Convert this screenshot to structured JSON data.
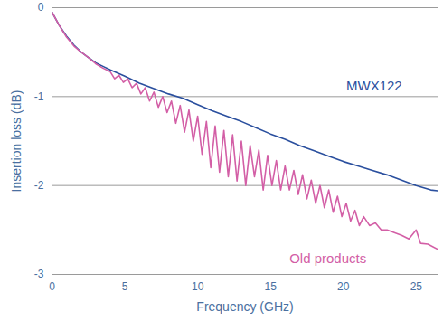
{
  "chart_data": {
    "type": "line",
    "x_label": "Frequency (GHz)",
    "y_label": "Insertion loss (dB)",
    "xlim": [
      0,
      26.5
    ],
    "ylim": [
      -3,
      0
    ],
    "xticks": [
      0,
      5,
      10,
      15,
      20,
      25
    ],
    "yticks": [
      0,
      -1,
      -2,
      -3
    ],
    "grid": true,
    "series": [
      {
        "name": "MWX122",
        "color": "#2a4f9e",
        "x": [
          0,
          0.5,
          1,
          1.5,
          2,
          2.5,
          3,
          3.5,
          4,
          5,
          6,
          7,
          8,
          9,
          10,
          11,
          12,
          13,
          14,
          15,
          16,
          17,
          18,
          19,
          20,
          21,
          22,
          23,
          24,
          25,
          26,
          26.5
        ],
        "values": [
          -0.05,
          -0.2,
          -0.32,
          -0.42,
          -0.5,
          -0.56,
          -0.62,
          -0.66,
          -0.7,
          -0.77,
          -0.85,
          -0.91,
          -0.97,
          -1.02,
          -1.09,
          -1.16,
          -1.22,
          -1.28,
          -1.35,
          -1.42,
          -1.48,
          -1.55,
          -1.61,
          -1.67,
          -1.73,
          -1.78,
          -1.83,
          -1.88,
          -1.94,
          -2.0,
          -2.05,
          -2.06
        ]
      },
      {
        "name": "Old products",
        "color": "#d35fa6",
        "x": [
          0,
          0.5,
          1,
          1.5,
          2,
          2.5,
          3,
          3.5,
          4,
          4.3,
          4.6,
          4.9,
          5.2,
          5.5,
          5.8,
          6.1,
          6.4,
          6.7,
          7,
          7.3,
          7.6,
          7.9,
          8.2,
          8.5,
          8.8,
          9.1,
          9.4,
          9.7,
          10,
          10.3,
          10.6,
          10.9,
          11.2,
          11.5,
          11.8,
          12.1,
          12.4,
          12.7,
          13,
          13.3,
          13.6,
          13.9,
          14.2,
          14.5,
          14.8,
          15.1,
          15.4,
          15.7,
          16,
          16.3,
          16.6,
          16.9,
          17.2,
          17.5,
          17.8,
          18.1,
          18.4,
          18.7,
          19,
          19.3,
          19.6,
          19.9,
          20.2,
          20.5,
          20.8,
          21.1,
          21.4,
          21.8,
          22.2,
          22.6,
          23,
          23.5,
          24,
          24.5,
          25,
          25.3,
          25.8,
          26.5
        ],
        "values": [
          -0.05,
          -0.2,
          -0.33,
          -0.43,
          -0.5,
          -0.56,
          -0.63,
          -0.68,
          -0.72,
          -0.8,
          -0.76,
          -0.84,
          -0.8,
          -0.9,
          -0.85,
          -0.97,
          -0.9,
          -1.05,
          -0.95,
          -1.12,
          -1.0,
          -1.18,
          -1.05,
          -1.3,
          -1.1,
          -1.4,
          -1.15,
          -1.5,
          -1.22,
          -1.65,
          -1.28,
          -1.8,
          -1.33,
          -1.85,
          -1.38,
          -1.9,
          -1.43,
          -1.95,
          -1.5,
          -2.0,
          -1.55,
          -1.9,
          -1.6,
          -2.05,
          -1.66,
          -2.0,
          -1.72,
          -2.05,
          -1.78,
          -2.05,
          -1.83,
          -2.1,
          -1.88,
          -2.15,
          -1.94,
          -2.2,
          -2.0,
          -2.25,
          -2.05,
          -2.3,
          -2.12,
          -2.35,
          -2.2,
          -2.4,
          -2.28,
          -2.45,
          -2.35,
          -2.45,
          -2.42,
          -2.5,
          -2.5,
          -2.53,
          -2.56,
          -2.6,
          -2.5,
          -2.65,
          -2.66,
          -2.72
        ]
      }
    ],
    "annotations": [
      {
        "text": "MWX122",
        "x": 20.2,
        "y": -0.88,
        "color": "#2a4f9e"
      },
      {
        "text": "Old products",
        "x": 16.3,
        "y": -2.82,
        "color": "#d35fa6"
      }
    ]
  }
}
